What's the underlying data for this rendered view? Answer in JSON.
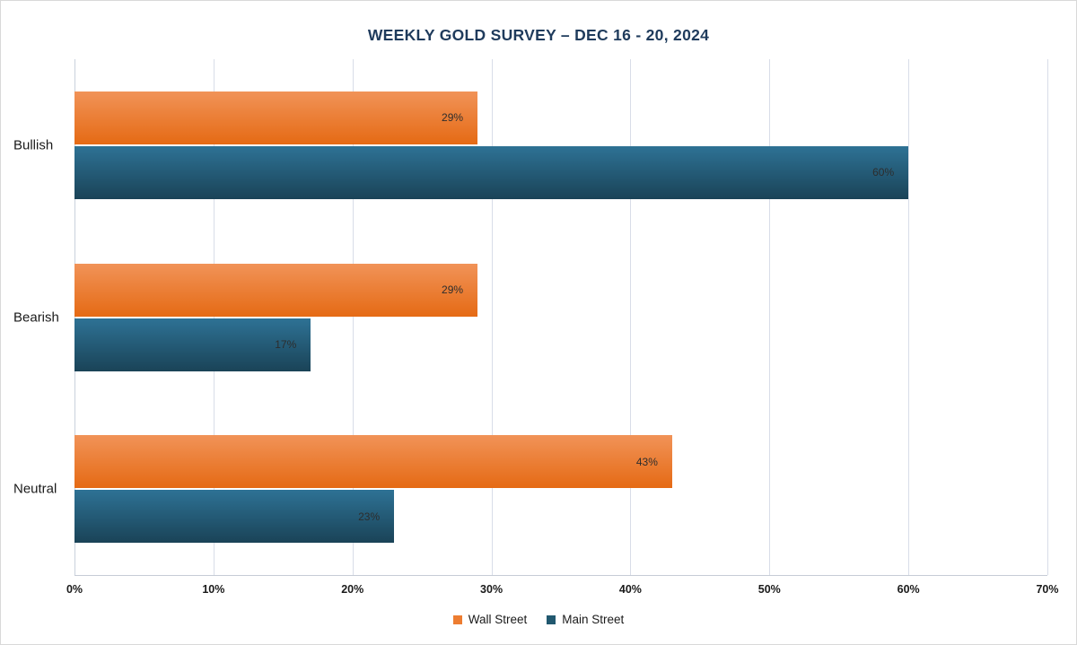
{
  "chart_data": {
    "type": "bar",
    "orientation": "horizontal",
    "title": "WEEKLY GOLD SURVEY – DEC 16 - 20, 2024",
    "title_color": "#1f3b5c",
    "categories": [
      "Bullish",
      "Bearish",
      "Neutral"
    ],
    "series": [
      {
        "name": "Wall Street",
        "values": [
          29,
          29,
          43
        ],
        "color": "#ed7d31",
        "gradient_top": "#f19358",
        "gradient_bottom": "#e56a14"
      },
      {
        "name": "Main Street",
        "values": [
          60,
          17,
          23
        ],
        "color": "#21586f",
        "gradient_top": "#2e7295",
        "gradient_bottom": "#1a4357"
      }
    ],
    "value_suffix": "%",
    "xlim": [
      0,
      70
    ],
    "x_ticks": [
      "0%",
      "10%",
      "20%",
      "30%",
      "40%",
      "50%",
      "60%",
      "70%"
    ],
    "grid": true,
    "legend_position": "bottom"
  }
}
